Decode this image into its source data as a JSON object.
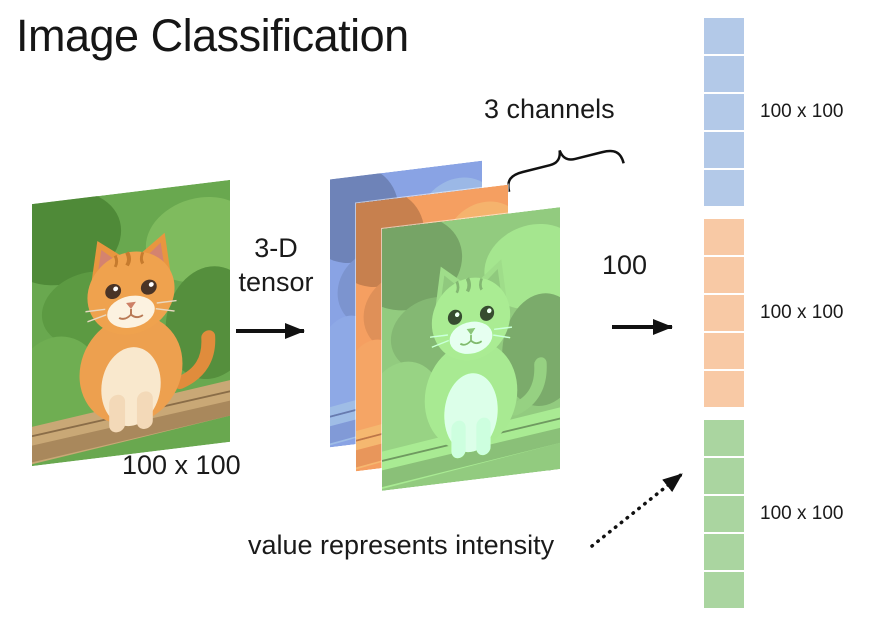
{
  "title": "Image Classification",
  "input": {
    "size_label": "100 x 100"
  },
  "tensor": {
    "label": "3-D tensor"
  },
  "channels": {
    "label": "3 channels",
    "height_label": "100",
    "width_label": "100"
  },
  "vector": {
    "groups": [
      {
        "name": "blue",
        "color": "#b3c9e8",
        "cells": 5,
        "label": "100 x 100"
      },
      {
        "name": "orange",
        "color": "#f8c9a5",
        "cells": 5,
        "label": "100 x 100"
      },
      {
        "name": "green",
        "color": "#aad5a0",
        "cells": 5,
        "label": "100 x 100"
      }
    ]
  },
  "note": {
    "text": "value represents intensity"
  }
}
